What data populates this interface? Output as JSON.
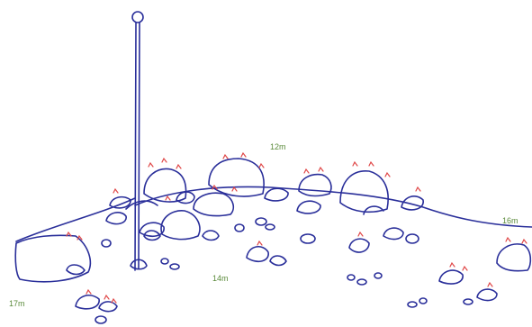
{
  "labels": {
    "top_center": "12m",
    "right": "16m",
    "center_bottom": "14m",
    "left_bottom": "17m"
  },
  "colors": {
    "ink": "#2a2f9a",
    "marks": "#e04848",
    "labels": "#5a8a3a",
    "background": "#ffffff"
  }
}
